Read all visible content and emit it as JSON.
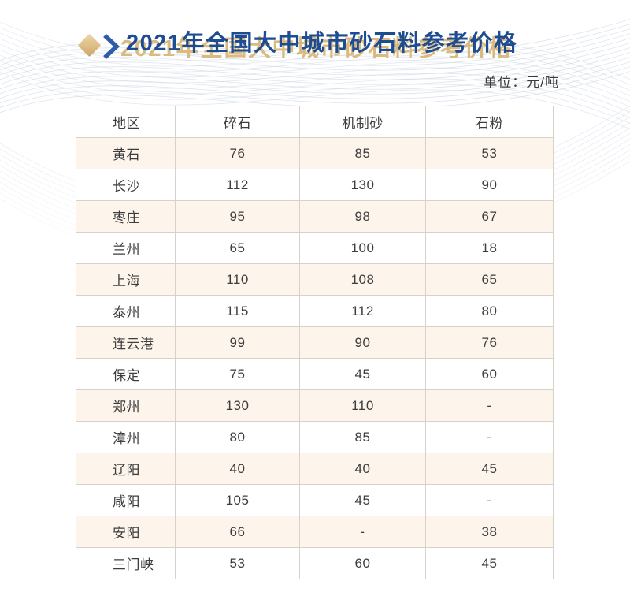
{
  "header": {
    "title": "2021年全国大中城市砂石料参考价格",
    "unit_label": "单位：元/吨"
  },
  "chart_data": {
    "type": "table",
    "title": "2021年全国大中城市砂石料参考价格",
    "unit": "元/吨",
    "columns": [
      "地区",
      "碎石",
      "机制砂",
      "石粉"
    ],
    "rows": [
      [
        "黄石",
        "76",
        "85",
        "53"
      ],
      [
        "长沙",
        "112",
        "130",
        "90"
      ],
      [
        "枣庄",
        "95",
        "98",
        "67"
      ],
      [
        "兰州",
        "65",
        "100",
        "18"
      ],
      [
        "上海",
        "110",
        "108",
        "65"
      ],
      [
        "泰州",
        "115",
        "112",
        "80"
      ],
      [
        "连云港",
        "99",
        "90",
        "76"
      ],
      [
        "保定",
        "75",
        "45",
        "60"
      ],
      [
        "郑州",
        "130",
        "110",
        "-"
      ],
      [
        "漳州",
        "80",
        "85",
        "-"
      ],
      [
        "辽阳",
        "40",
        "40",
        "45"
      ],
      [
        "咸阳",
        "105",
        "45",
        "-"
      ],
      [
        "安阳",
        "66",
        "-",
        "38"
      ],
      [
        "三门峡",
        "53",
        "60",
        "45"
      ]
    ]
  },
  "colors": {
    "title_blue": "#1d4c92",
    "title_gold": "#d9ba80",
    "diamond_gold": "#dcbd85",
    "chevron_blue": "#2e5ca6",
    "row_cream": "#fdf5ec",
    "table_border": "#d7d1ca",
    "cell_text": "#3d3d3d",
    "wave_line": "#c3cedf"
  }
}
